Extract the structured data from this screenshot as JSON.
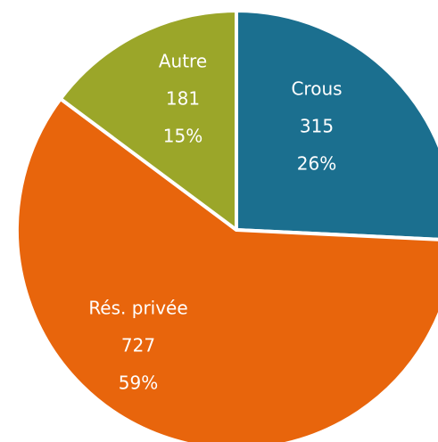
{
  "chart_data": {
    "type": "pie",
    "categories": [
      "Crous",
      "Rés. privée",
      "Autre"
    ],
    "values": [
      315,
      727,
      181
    ],
    "percent_labels": [
      "26%",
      "59%",
      "15%"
    ],
    "colors": [
      "#1b6f8f",
      "#e8650c",
      "#9ba629"
    ]
  }
}
